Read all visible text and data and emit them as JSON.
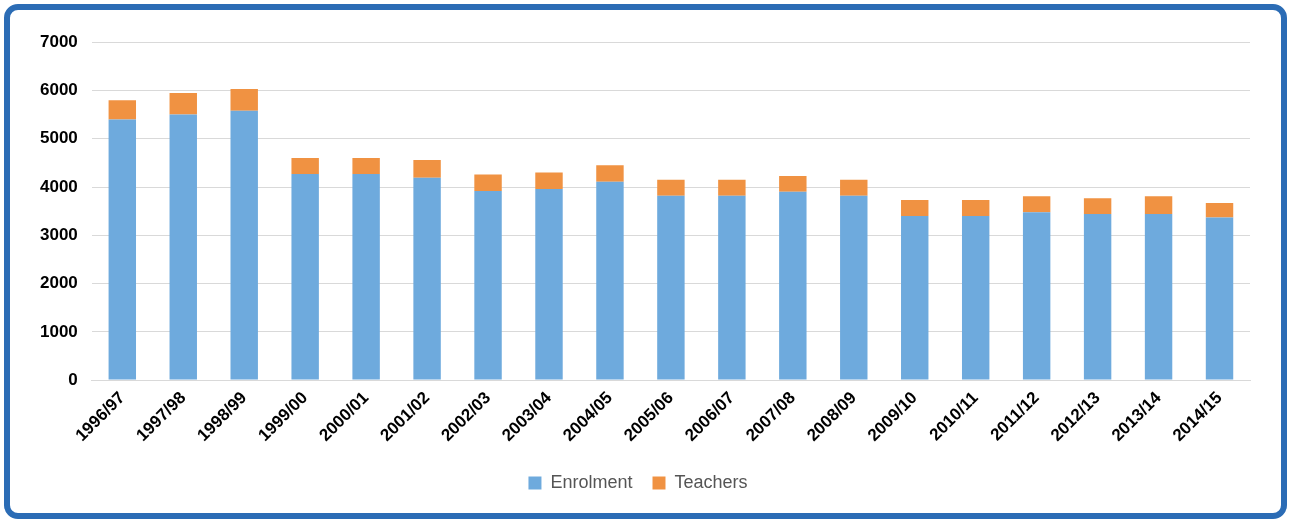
{
  "chart_data": {
    "type": "bar",
    "stacked": true,
    "categories": [
      "1996/97",
      "1997/98",
      "1998/99",
      "1999/00",
      "2000/01",
      "2001/02",
      "2002/03",
      "2003/04",
      "2004/05",
      "2005/06",
      "2006/07",
      "2007/08",
      "2008/09",
      "2009/10",
      "2010/11",
      "2011/12",
      "2012/13",
      "2013/14",
      "2014/15"
    ],
    "series": [
      {
        "name": "Enrolment",
        "color": "#6eaadd",
        "values": [
          5400,
          5500,
          5580,
          4270,
          4270,
          4190,
          3920,
          3960,
          4110,
          3820,
          3820,
          3900,
          3820,
          3400,
          3400,
          3480,
          3440,
          3440,
          3370
        ]
      },
      {
        "name": "Teachers",
        "color": "#f09242",
        "values": [
          400,
          450,
          450,
          330,
          330,
          370,
          340,
          340,
          340,
          330,
          330,
          330,
          330,
          330,
          330,
          330,
          330,
          370,
          300
        ]
      }
    ],
    "ylim": [
      0,
      7000
    ],
    "yticks": [
      0,
      1000,
      2000,
      3000,
      4000,
      5000,
      6000,
      7000
    ],
    "grid": "y",
    "legend": "bottom"
  }
}
